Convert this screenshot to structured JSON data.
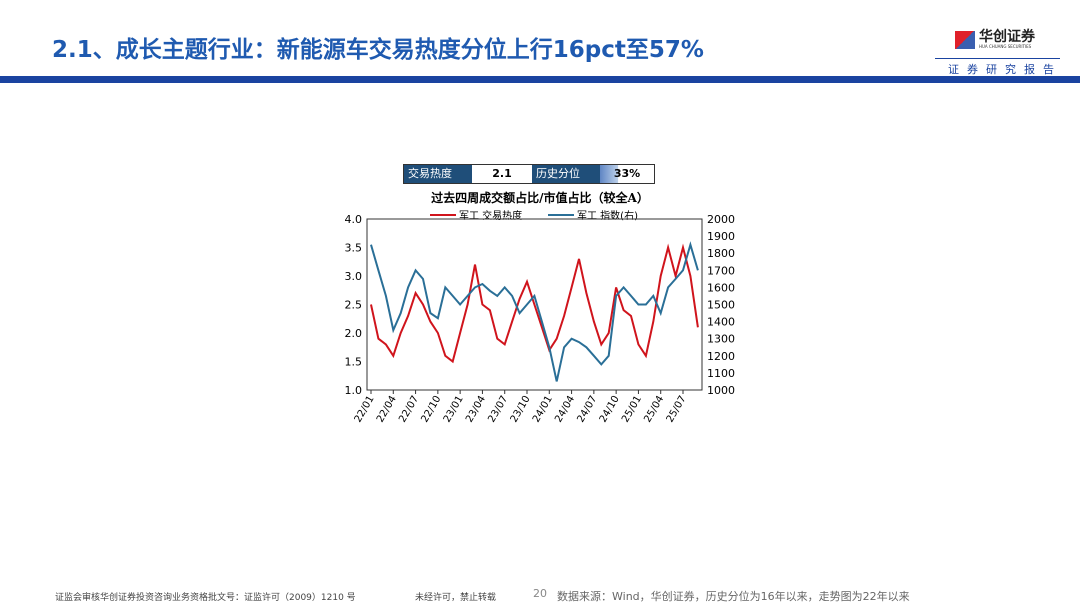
{
  "header": {
    "title": "2.1、成长主题行业：新能源车交易热度分位上行16pct至57%",
    "logo_name": "华创证券",
    "logo_sub": "HUA CHUANG SECURITIES",
    "report_label": "证券研究报告"
  },
  "heat_box": {
    "label1": "交易热度",
    "value1": "2.1",
    "label2": "历史分位",
    "value2": "33%",
    "percentile": 33
  },
  "colors": {
    "title": "#1f5ab0",
    "series_red": "#d0141c",
    "series_blue": "#2a6f97"
  },
  "chart_data": {
    "type": "line",
    "title": "过去四周成交额占比/市值占比（较全A）",
    "x_ticks": [
      "22/01",
      "22/04",
      "22/07",
      "22/10",
      "23/01",
      "23/04",
      "23/07",
      "23/10",
      "24/01",
      "24/04",
      "24/07",
      "24/10",
      "25/01",
      "25/04",
      "25/07"
    ],
    "x": [
      "22/01",
      "22/02",
      "22/03",
      "22/04",
      "22/05",
      "22/06",
      "22/07",
      "22/08",
      "22/09",
      "22/10",
      "22/11",
      "22/12",
      "23/01",
      "23/02",
      "23/03",
      "23/04",
      "23/05",
      "23/06",
      "23/07",
      "23/08",
      "23/09",
      "23/10",
      "23/11",
      "23/12",
      "24/01",
      "24/02",
      "24/03",
      "24/04",
      "24/05",
      "24/06",
      "24/07",
      "24/08",
      "24/09",
      "24/10",
      "24/11",
      "24/12",
      "25/01",
      "25/02",
      "25/03",
      "25/04",
      "25/05",
      "25/06",
      "25/07",
      "25/08",
      "25/09"
    ],
    "y_left": {
      "range": [
        1.0,
        4.0
      ],
      "ticks": [
        "1.0",
        "1.5",
        "2.0",
        "2.5",
        "3.0",
        "3.5",
        "4.0"
      ]
    },
    "y_right": {
      "range": [
        1000,
        2000
      ],
      "ticks": [
        "1000",
        "1100",
        "1200",
        "1300",
        "1400",
        "1500",
        "1600",
        "1700",
        "1800",
        "1900",
        "2000"
      ]
    },
    "legend_position": "top",
    "series": [
      {
        "name": "军工 交易热度",
        "axis": "left",
        "values": [
          2.5,
          1.9,
          1.8,
          1.6,
          2.0,
          2.3,
          2.7,
          2.5,
          2.2,
          2.0,
          1.6,
          1.5,
          2.0,
          2.5,
          3.2,
          2.5,
          2.4,
          1.9,
          1.8,
          2.2,
          2.6,
          2.9,
          2.5,
          2.1,
          1.7,
          1.9,
          2.3,
          2.8,
          3.3,
          2.7,
          2.2,
          1.8,
          2.0,
          2.8,
          2.4,
          2.3,
          1.8,
          1.6,
          2.2,
          3.0,
          3.5,
          3.0,
          3.5,
          3.0,
          2.1
        ]
      },
      {
        "name": "军工 指数(右)",
        "axis": "right",
        "values": [
          1850,
          1700,
          1550,
          1350,
          1450,
          1600,
          1700,
          1650,
          1450,
          1420,
          1600,
          1550,
          1500,
          1550,
          1600,
          1620,
          1580,
          1550,
          1600,
          1550,
          1450,
          1500,
          1550,
          1400,
          1250,
          1050,
          1250,
          1300,
          1280,
          1250,
          1200,
          1150,
          1200,
          1550,
          1600,
          1550,
          1500,
          1500,
          1550,
          1450,
          1600,
          1650,
          1700,
          1850,
          1700
        ]
      }
    ]
  },
  "footer": {
    "license": "证监会审核华创证券投资咨询业务资格批文号：证监许可（2009）1210 号",
    "notice": "未经许可，禁止转载",
    "page": "20",
    "source": "数据来源：Wind，华创证券，历史分位为16年以来，走势图为22年以来"
  }
}
